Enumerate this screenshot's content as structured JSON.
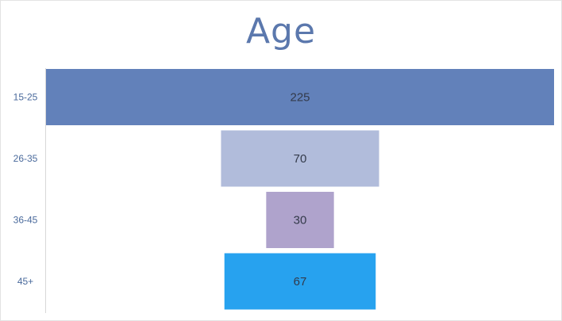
{
  "chart_data": {
    "type": "bar",
    "orientation": "horizontal-funnel",
    "title": "Age",
    "categories": [
      "15-25",
      "26-35",
      "36-45",
      "45+"
    ],
    "values": [
      225,
      70,
      30,
      67
    ],
    "colors": [
      "#6281ba",
      "#b1bcdb",
      "#afa3cc",
      "#27a2ef"
    ],
    "grid": false
  }
}
